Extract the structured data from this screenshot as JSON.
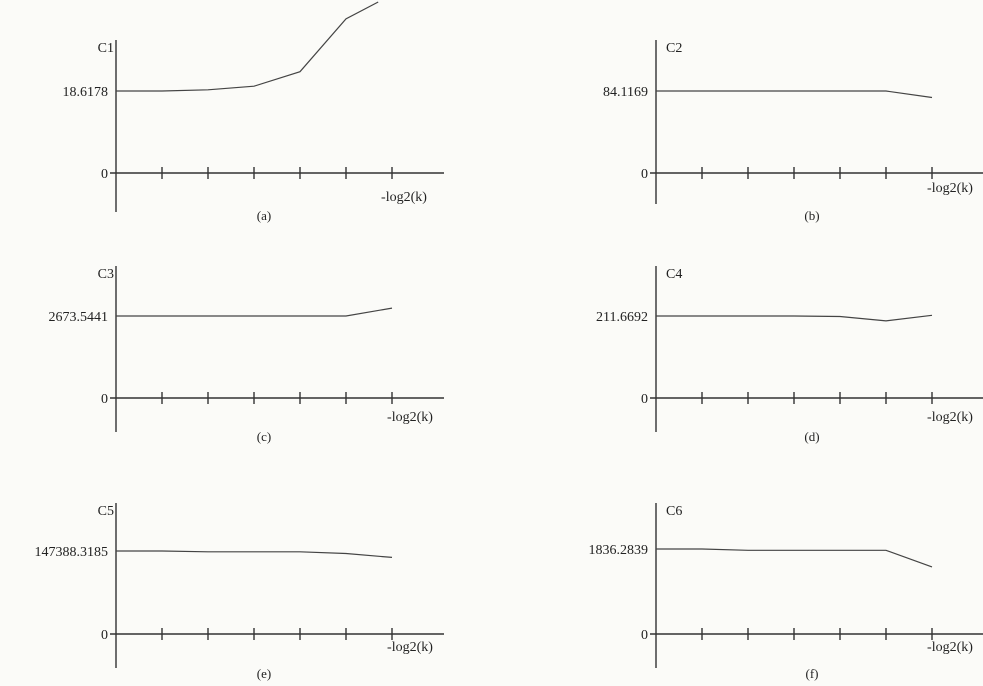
{
  "chart_data": [
    {
      "type": "line",
      "panel_label": "(a)",
      "ylabel": "C1",
      "xlabel": "-log2(k)",
      "y_tick_labels": [
        "18.6178",
        "0"
      ],
      "x": [
        1,
        2,
        3,
        4,
        5,
        6,
        6.7
      ],
      "values": [
        18.6178,
        18.6178,
        18.9,
        19.7,
        23.0,
        35.0,
        48.0
      ],
      "grid": false
    },
    {
      "type": "line",
      "panel_label": "(b)",
      "ylabel": "C2",
      "xlabel": "-log2(k)",
      "y_tick_labels": [
        "84.1169",
        "0"
      ],
      "x": [
        1,
        2,
        3,
        4,
        5,
        6,
        7
      ],
      "values": [
        84.1169,
        84.1169,
        84.1169,
        84.1169,
        84.1169,
        84.1169,
        77.5
      ],
      "grid": false
    },
    {
      "type": "line",
      "panel_label": "(c)",
      "ylabel": "C3",
      "xlabel": "-log2(k)",
      "y_tick_labels": [
        "2673.5441",
        "0"
      ],
      "x": [
        1,
        2,
        3,
        4,
        5,
        6,
        7
      ],
      "values": [
        2673.5441,
        2673.5441,
        2673.5441,
        2673.5441,
        2673.5441,
        2673.5441,
        2930
      ],
      "grid": false
    },
    {
      "type": "line",
      "panel_label": "(d)",
      "ylabel": "C4",
      "xlabel": "-log2(k)",
      "y_tick_labels": [
        "211.6692",
        "0"
      ],
      "x": [
        1,
        2,
        3,
        4,
        5,
        6,
        7
      ],
      "values": [
        211.6692,
        211.6692,
        211.6692,
        211.6692,
        210.5,
        199.0,
        213.5
      ],
      "grid": false
    },
    {
      "type": "line",
      "panel_label": "(e)",
      "ylabel": "C5",
      "xlabel": "-log2(k)",
      "y_tick_labels": [
        "147388.3185",
        "0"
      ],
      "x": [
        1,
        2,
        3,
        4,
        5,
        6,
        7
      ],
      "values": [
        147388.3185,
        147388.3185,
        146000,
        146000,
        145900,
        142900,
        136000
      ],
      "grid": false
    },
    {
      "type": "line",
      "panel_label": "(f)",
      "ylabel": "C6",
      "xlabel": "-log2(k)",
      "y_tick_labels": [
        "1836.2839",
        "0"
      ],
      "x": [
        1,
        2,
        3,
        4,
        5,
        6,
        7
      ],
      "values": [
        1836.2839,
        1836.2839,
        1808,
        1808,
        1808,
        1808,
        1450
      ],
      "grid": false
    }
  ]
}
